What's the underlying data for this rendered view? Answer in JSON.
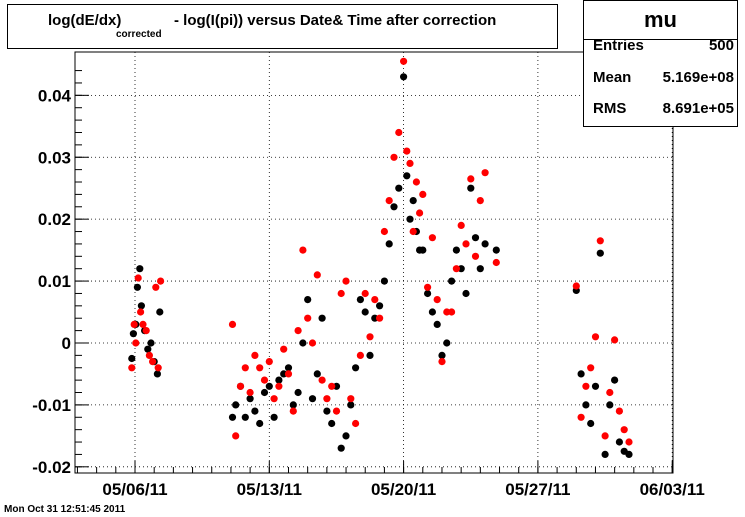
{
  "title": {
    "part1": "log(dE/dx)",
    "subscript": "corrected",
    "part2": "- log(I(pi)) versus Date& Time after correction"
  },
  "stats": {
    "name": "mu",
    "rows": [
      {
        "label": "Entries",
        "value": "500"
      },
      {
        "label": "Mean",
        "value": "5.169e+08"
      },
      {
        "label": "RMS",
        "value": "8.691e+05"
      }
    ]
  },
  "footer": "Mon Oct 31 12:51:45 2011",
  "colors": {
    "series_a": "#000000",
    "series_b": "#ff0000",
    "grid": "#000000"
  },
  "chart_data": {
    "type": "scatter",
    "x_axis": {
      "ticks": [
        "05/06/11",
        "05/13/11",
        "05/20/11",
        "05/27/11",
        "06/03/11"
      ]
    },
    "y_axis": {
      "range": [
        -0.021,
        0.047
      ],
      "ticks": [
        "-0.02",
        "-0.01",
        "0",
        "0.01",
        "0.02",
        "0.03",
        "0.04"
      ],
      "tick_values": [
        -0.02,
        -0.01,
        0,
        0.01,
        0.02,
        0.03,
        0.04
      ]
    },
    "grid": true,
    "series": [
      {
        "color": "black",
        "points": [
          [
            "05/05/11 20:00",
            -0.0025
          ],
          [
            "05/05/11 22:00",
            0.0015
          ],
          [
            "05/06/11 01:00",
            0.003
          ],
          [
            "05/06/11 03:00",
            0.009
          ],
          [
            "05/06/11 06:00",
            0.012
          ],
          [
            "05/06/11 08:00",
            0.006
          ],
          [
            "05/06/11 12:00",
            0.002
          ],
          [
            "05/06/11 16:00",
            -0.001
          ],
          [
            "05/06/11 20:00",
            0.0
          ],
          [
            "05/07/11 00:00",
            -0.003
          ],
          [
            "05/07/11 04:00",
            -0.005
          ],
          [
            "05/07/11 07:00",
            0.005
          ],
          [
            "05/11/11 02:00",
            -0.012
          ],
          [
            "05/11/11 06:00",
            -0.01
          ],
          [
            "05/11/11 12:00",
            -0.007
          ],
          [
            "05/11/11 18:00",
            -0.012
          ],
          [
            "05/12/11 00:00",
            -0.009
          ],
          [
            "05/12/11 06:00",
            -0.011
          ],
          [
            "05/12/11 12:00",
            -0.013
          ],
          [
            "05/12/11 18:00",
            -0.008
          ],
          [
            "05/13/11 00:00",
            -0.007
          ],
          [
            "05/13/11 06:00",
            -0.012
          ],
          [
            "05/13/11 12:00",
            -0.006
          ],
          [
            "05/13/11 18:00",
            -0.005
          ],
          [
            "05/14/11 00:00",
            -0.004
          ],
          [
            "05/14/11 06:00",
            -0.01
          ],
          [
            "05/14/11 12:00",
            -0.008
          ],
          [
            "05/14/11 18:00",
            0.0
          ],
          [
            "05/15/11 00:00",
            0.007
          ],
          [
            "05/15/11 06:00",
            -0.009
          ],
          [
            "05/15/11 12:00",
            -0.005
          ],
          [
            "05/15/11 18:00",
            0.004
          ],
          [
            "05/16/11 00:00",
            -0.011
          ],
          [
            "05/16/11 06:00",
            -0.013
          ],
          [
            "05/16/11 12:00",
            -0.007
          ],
          [
            "05/16/11 18:00",
            -0.017
          ],
          [
            "05/17/11 00:00",
            -0.015
          ],
          [
            "05/17/11 06:00",
            -0.01
          ],
          [
            "05/17/11 12:00",
            -0.004
          ],
          [
            "05/17/11 18:00",
            0.007
          ],
          [
            "05/18/11 00:00",
            0.005
          ],
          [
            "05/18/11 06:00",
            -0.002
          ],
          [
            "05/18/11 12:00",
            0.004
          ],
          [
            "05/18/11 18:00",
            0.006
          ],
          [
            "05/19/11 00:00",
            0.01
          ],
          [
            "05/19/11 06:00",
            0.016
          ],
          [
            "05/19/11 12:00",
            0.022
          ],
          [
            "05/19/11 18:00",
            0.025
          ],
          [
            "05/20/11 00:00",
            0.043
          ],
          [
            "05/20/11 04:00",
            0.027
          ],
          [
            "05/20/11 08:00",
            0.02
          ],
          [
            "05/20/11 12:00",
            0.023
          ],
          [
            "05/20/11 16:00",
            0.018
          ],
          [
            "05/20/11 20:00",
            0.015
          ],
          [
            "05/21/11 00:00",
            0.015
          ],
          [
            "05/21/11 06:00",
            0.008
          ],
          [
            "05/21/11 12:00",
            0.005
          ],
          [
            "05/21/11 18:00",
            0.003
          ],
          [
            "05/22/11 00:00",
            -0.002
          ],
          [
            "05/22/11 06:00",
            0.0
          ],
          [
            "05/22/11 12:00",
            0.01
          ],
          [
            "05/22/11 18:00",
            0.015
          ],
          [
            "05/23/11 00:00",
            0.012
          ],
          [
            "05/23/11 06:00",
            0.008
          ],
          [
            "05/23/11 12:00",
            0.025
          ],
          [
            "05/23/11 18:00",
            0.017
          ],
          [
            "05/24/11 00:00",
            0.012
          ],
          [
            "05/24/11 06:00",
            0.016
          ],
          [
            "05/24/11 20:00",
            0.015
          ],
          [
            "05/29/11 00:00",
            0.0085
          ],
          [
            "05/29/11 06:00",
            -0.005
          ],
          [
            "05/29/11 12:00",
            -0.01
          ],
          [
            "05/29/11 18:00",
            -0.013
          ],
          [
            "05/30/11 00:00",
            -0.007
          ],
          [
            "05/30/11 06:00",
            0.0145
          ],
          [
            "05/30/11 12:00",
            -0.018
          ],
          [
            "05/30/11 18:00",
            -0.01
          ],
          [
            "05/31/11 00:00",
            -0.006
          ],
          [
            "05/31/11 06:00",
            -0.016
          ],
          [
            "05/31/11 12:00",
            -0.0175
          ],
          [
            "05/31/11 18:00",
            -0.018
          ]
        ]
      },
      {
        "color": "red",
        "points": [
          [
            "05/05/11 20:00",
            -0.004
          ],
          [
            "05/05/11 23:00",
            0.003
          ],
          [
            "05/06/11 01:00",
            0.0
          ],
          [
            "05/06/11 04:00",
            0.0105
          ],
          [
            "05/06/11 07:00",
            0.005
          ],
          [
            "05/06/11 10:00",
            0.003
          ],
          [
            "05/06/11 14:00",
            0.002
          ],
          [
            "05/06/11 18:00",
            -0.002
          ],
          [
            "05/06/11 22:00",
            -0.003
          ],
          [
            "05/07/11 02:00",
            0.009
          ],
          [
            "05/07/11 05:00",
            -0.004
          ],
          [
            "05/07/11 08:00",
            0.01
          ],
          [
            "05/11/11 02:00",
            0.003
          ],
          [
            "05/11/11 06:00",
            -0.015
          ],
          [
            "05/11/11 12:00",
            -0.007
          ],
          [
            "05/11/11 18:00",
            -0.004
          ],
          [
            "05/12/11 00:00",
            -0.008
          ],
          [
            "05/12/11 06:00",
            -0.002
          ],
          [
            "05/12/11 12:00",
            -0.004
          ],
          [
            "05/12/11 18:00",
            -0.006
          ],
          [
            "05/13/11 00:00",
            -0.003
          ],
          [
            "05/13/11 06:00",
            -0.009
          ],
          [
            "05/13/11 12:00",
            -0.007
          ],
          [
            "05/13/11 18:00",
            -0.001
          ],
          [
            "05/14/11 00:00",
            -0.005
          ],
          [
            "05/14/11 06:00",
            -0.011
          ],
          [
            "05/14/11 12:00",
            0.002
          ],
          [
            "05/14/11 18:00",
            0.015
          ],
          [
            "05/15/11 00:00",
            0.004
          ],
          [
            "05/15/11 06:00",
            0.0
          ],
          [
            "05/15/11 12:00",
            0.011
          ],
          [
            "05/15/11 18:00",
            -0.006
          ],
          [
            "05/16/11 00:00",
            -0.009
          ],
          [
            "05/16/11 06:00",
            -0.007
          ],
          [
            "05/16/11 12:00",
            -0.011
          ],
          [
            "05/16/11 18:00",
            0.008
          ],
          [
            "05/17/11 00:00",
            0.01
          ],
          [
            "05/17/11 06:00",
            -0.009
          ],
          [
            "05/17/11 12:00",
            -0.013
          ],
          [
            "05/17/11 18:00",
            -0.002
          ],
          [
            "05/18/11 00:00",
            0.008
          ],
          [
            "05/18/11 06:00",
            0.001
          ],
          [
            "05/18/11 12:00",
            0.007
          ],
          [
            "05/18/11 18:00",
            0.004
          ],
          [
            "05/19/11 00:00",
            0.018
          ],
          [
            "05/19/11 06:00",
            0.023
          ],
          [
            "05/19/11 12:00",
            0.03
          ],
          [
            "05/19/11 18:00",
            0.034
          ],
          [
            "05/20/11 00:00",
            0.0455
          ],
          [
            "05/20/11 04:00",
            0.031
          ],
          [
            "05/20/11 08:00",
            0.029
          ],
          [
            "05/20/11 12:00",
            0.018
          ],
          [
            "05/20/11 16:00",
            0.026
          ],
          [
            "05/20/11 20:00",
            0.021
          ],
          [
            "05/21/11 00:00",
            0.024
          ],
          [
            "05/21/11 06:00",
            0.009
          ],
          [
            "05/21/11 12:00",
            0.017
          ],
          [
            "05/21/11 18:00",
            0.007
          ],
          [
            "05/22/11 00:00",
            -0.003
          ],
          [
            "05/22/11 06:00",
            0.005
          ],
          [
            "05/22/11 12:00",
            0.005
          ],
          [
            "05/22/11 18:00",
            0.012
          ],
          [
            "05/23/11 00:00",
            0.019
          ],
          [
            "05/23/11 06:00",
            0.016
          ],
          [
            "05/23/11 12:00",
            0.0265
          ],
          [
            "05/23/11 18:00",
            0.014
          ],
          [
            "05/24/11 00:00",
            0.023
          ],
          [
            "05/24/11 06:00",
            0.0275
          ],
          [
            "05/24/11 20:00",
            0.013
          ],
          [
            "05/29/11 00:00",
            0.0092
          ],
          [
            "05/29/11 06:00",
            -0.012
          ],
          [
            "05/29/11 12:00",
            -0.007
          ],
          [
            "05/29/11 18:00",
            -0.004
          ],
          [
            "05/30/11 00:00",
            0.001
          ],
          [
            "05/30/11 06:00",
            0.0165
          ],
          [
            "05/30/11 12:00",
            -0.015
          ],
          [
            "05/30/11 18:00",
            -0.008
          ],
          [
            "05/31/11 00:00",
            0.0005
          ],
          [
            "05/31/11 06:00",
            -0.011
          ],
          [
            "05/31/11 12:00",
            -0.014
          ],
          [
            "05/31/11 18:00",
            -0.016
          ]
        ]
      }
    ]
  }
}
